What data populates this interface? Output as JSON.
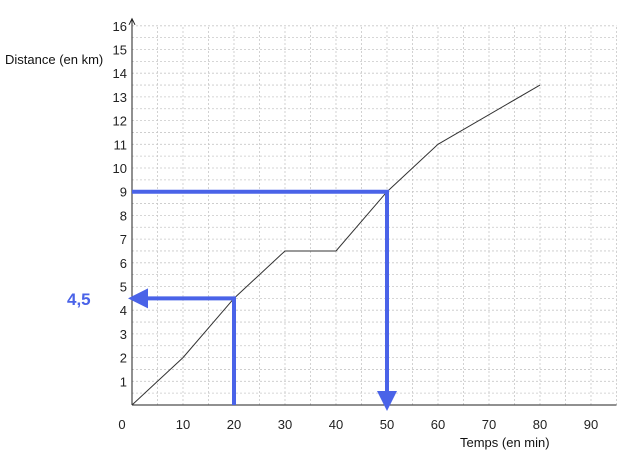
{
  "chart_data": {
    "type": "line",
    "title": "",
    "xlabel": "Temps (en min)",
    "ylabel": "Distance (en km)",
    "xlim": [
      0,
      95
    ],
    "ylim": [
      0,
      16
    ],
    "x_ticks": [
      "0",
      "10",
      "20",
      "30",
      "40",
      "50",
      "60",
      "70",
      "80",
      "90"
    ],
    "y_ticks": [
      "1",
      "2",
      "3",
      "4",
      "5",
      "6",
      "7",
      "8",
      "9",
      "10",
      "11",
      "12",
      "13",
      "14",
      "15",
      "16"
    ],
    "grid": true,
    "series": [
      {
        "x": [
          0,
          10,
          20,
          30,
          40,
          50,
          60,
          80
        ],
        "y": [
          0,
          2,
          4.5,
          6.5,
          6.5,
          9,
          11,
          13.5
        ]
      }
    ],
    "guides": [
      {
        "type": "horizontal-to-y-axis",
        "from_x": 20,
        "at_y": 4.5,
        "rises_from_x_axis": true
      },
      {
        "type": "vertical-to-x-axis",
        "from_x": 0,
        "at_y": 9,
        "at_x": 50
      }
    ],
    "annotations": [
      {
        "text": "4,5",
        "y": 4.5,
        "color": "#4a63e8"
      }
    ],
    "colors": {
      "line": "#333333",
      "guide": "#4a63e8",
      "grid": "#c8c8c8"
    }
  }
}
